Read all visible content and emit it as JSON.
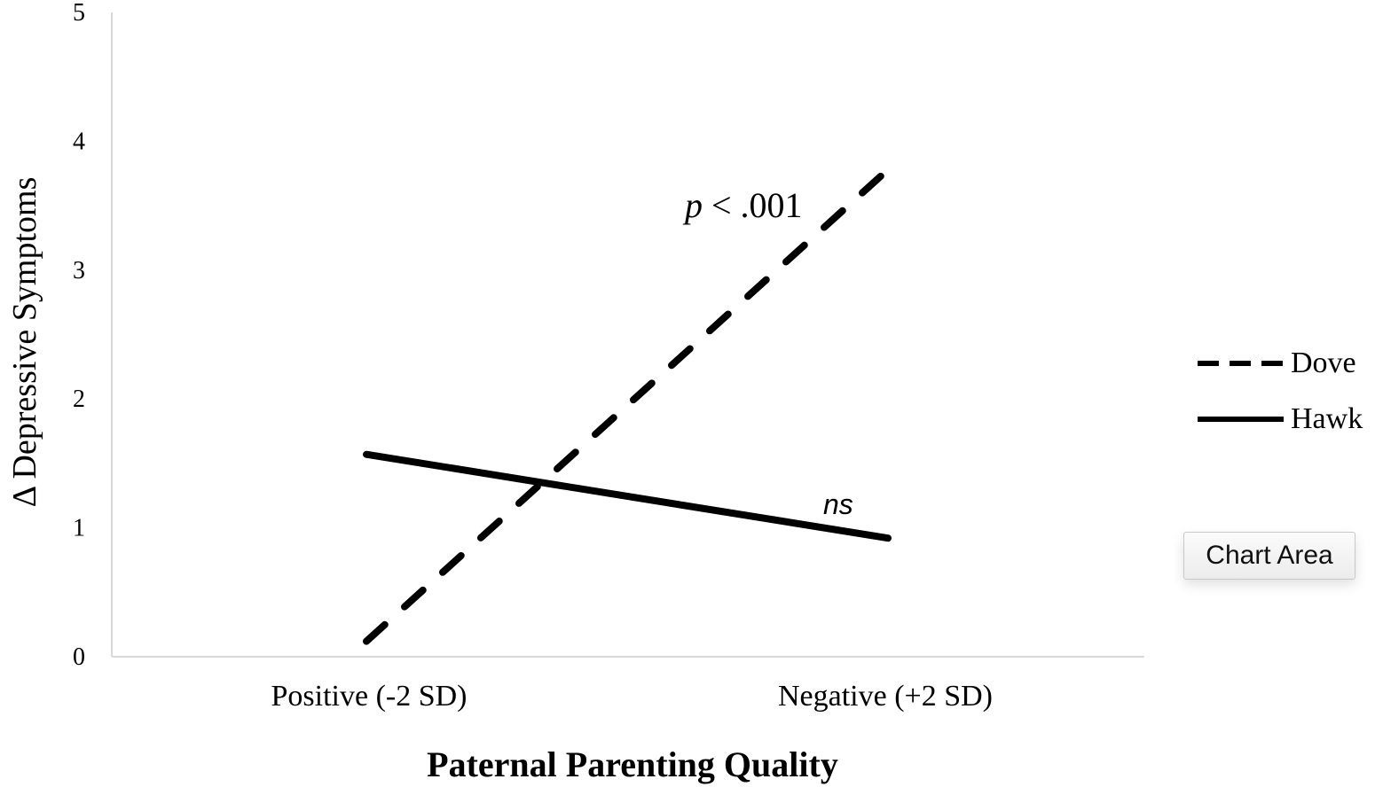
{
  "chart_data": {
    "type": "line",
    "title": "",
    "xlabel": "Paternal Parenting Quality",
    "ylabel": "Δ Depressive Symptoms",
    "categories": [
      "Positive (-2 SD)",
      "Negative (+2 SD)"
    ],
    "ylim": [
      0,
      5
    ],
    "yticks": [
      "0",
      "1",
      "2",
      "3",
      "4",
      "5"
    ],
    "grid": false,
    "legend_position": "right",
    "series": [
      {
        "name": "Dove",
        "values": [
          0.12,
          3.78
        ],
        "style": "dashed",
        "color": "#000000"
      },
      {
        "name": "Hawk",
        "values": [
          1.57,
          0.92
        ],
        "style": "solid",
        "color": "#000000"
      }
    ],
    "annotations": {
      "dove_p_label": "p",
      "dove_p_value": " < .001",
      "hawk_label": "ns"
    }
  },
  "tooltip": {
    "label": "Chart Area"
  }
}
